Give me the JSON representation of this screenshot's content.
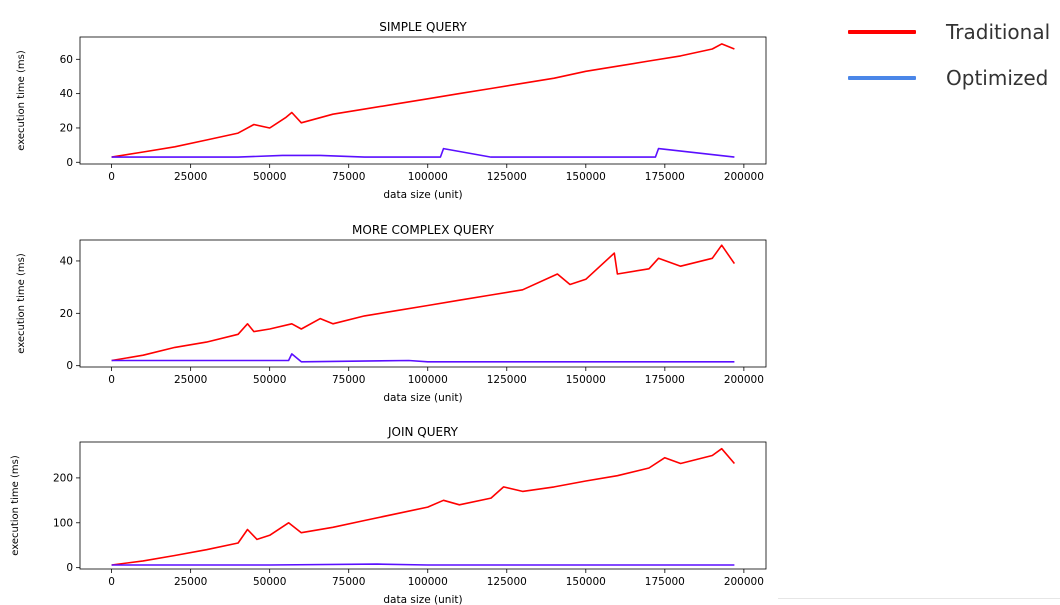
{
  "chart_data": [
    {
      "type": "line",
      "title": "SIMPLE QUERY",
      "xlabel": "data size (unit)",
      "ylabel": "execution time (ms)",
      "xlim": [
        -10000,
        207000
      ],
      "ylim": [
        -1,
        73
      ],
      "xticks": [
        0,
        25000,
        50000,
        75000,
        100000,
        125000,
        150000,
        175000,
        200000
      ],
      "yticks": [
        0,
        20,
        40,
        60
      ],
      "series": [
        {
          "name": "Traditional",
          "color": "#ff0000",
          "x": [
            0,
            10000,
            20000,
            30000,
            40000,
            45000,
            50000,
            55000,
            57000,
            60000,
            70000,
            80000,
            90000,
            100000,
            110000,
            120000,
            130000,
            140000,
            150000,
            160000,
            170000,
            180000,
            190000,
            193000,
            197000
          ],
          "y": [
            3,
            6,
            9,
            13,
            17,
            22,
            20,
            26,
            29,
            23,
            28,
            31,
            34,
            37,
            40,
            43,
            46,
            49,
            53,
            56,
            59,
            62,
            66,
            69,
            66
          ]
        },
        {
          "name": "Optimized",
          "color": "#5a0fff",
          "x": [
            0,
            20000,
            40000,
            54000,
            66000,
            80000,
            104000,
            105000,
            120000,
            150000,
            172000,
            173000,
            197000
          ],
          "y": [
            3,
            3,
            3,
            4,
            4,
            3,
            3,
            8,
            3,
            3,
            3,
            8,
            3
          ]
        }
      ]
    },
    {
      "type": "line",
      "title": "MORE COMPLEX QUERY",
      "xlabel": "data size (unit)",
      "ylabel": "execution time (ms)",
      "xlim": [
        -10000,
        207000
      ],
      "ylim": [
        -0.5,
        48
      ],
      "xticks": [
        0,
        25000,
        50000,
        75000,
        100000,
        125000,
        150000,
        175000,
        200000
      ],
      "yticks": [
        0,
        20,
        40
      ],
      "series": [
        {
          "name": "Traditional",
          "color": "#ff0000",
          "x": [
            0,
            10000,
            20000,
            30000,
            40000,
            43000,
            45000,
            50000,
            57000,
            60000,
            66000,
            70000,
            80000,
            90000,
            100000,
            110000,
            120000,
            130000,
            141000,
            145000,
            150000,
            159000,
            160000,
            170000,
            173000,
            180000,
            190000,
            193000,
            197000
          ],
          "y": [
            2,
            4,
            7,
            9,
            12,
            16,
            13,
            14,
            16,
            14,
            18,
            16,
            19,
            21,
            23,
            25,
            27,
            29,
            35,
            31,
            33,
            43,
            35,
            37,
            41,
            38,
            41,
            46,
            39
          ]
        },
        {
          "name": "Optimized",
          "color": "#5a0fff",
          "x": [
            0,
            20000,
            40000,
            56000,
            57000,
            60000,
            94000,
            100000,
            150000,
            197000
          ],
          "y": [
            2,
            2,
            2,
            2,
            4.5,
            1.5,
            2,
            1.5,
            1.5,
            1.5
          ]
        }
      ]
    },
    {
      "type": "line",
      "title": "JOIN QUERY",
      "xlabel": "data size (unit)",
      "ylabel": "execution time (ms)",
      "xlim": [
        -10000,
        207000
      ],
      "ylim": [
        -3,
        280
      ],
      "xticks": [
        0,
        25000,
        50000,
        75000,
        100000,
        125000,
        150000,
        175000,
        200000
      ],
      "yticks": [
        0,
        100,
        200
      ],
      "series": [
        {
          "name": "Traditional",
          "color": "#ff0000",
          "x": [
            0,
            10000,
            20000,
            30000,
            40000,
            43000,
            46000,
            50000,
            56000,
            60000,
            70000,
            80000,
            90000,
            100000,
            105000,
            110000,
            120000,
            124000,
            130000,
            140000,
            150000,
            160000,
            170000,
            175000,
            180000,
            190000,
            193000,
            197000
          ],
          "y": [
            6,
            15,
            27,
            40,
            55,
            85,
            63,
            72,
            100,
            78,
            90,
            105,
            120,
            135,
            150,
            140,
            155,
            180,
            170,
            180,
            193,
            205,
            222,
            245,
            232,
            250,
            265,
            232
          ]
        },
        {
          "name": "Optimized",
          "color": "#5a0fff",
          "x": [
            0,
            50000,
            84000,
            100000,
            150000,
            197000
          ],
          "y": [
            6,
            6,
            8,
            6,
            6,
            6
          ]
        }
      ]
    }
  ],
  "legend": {
    "items": [
      {
        "label": "Traditional",
        "color": "#ff0000"
      },
      {
        "label": "Optimized",
        "color": "#4a86e8"
      }
    ]
  }
}
